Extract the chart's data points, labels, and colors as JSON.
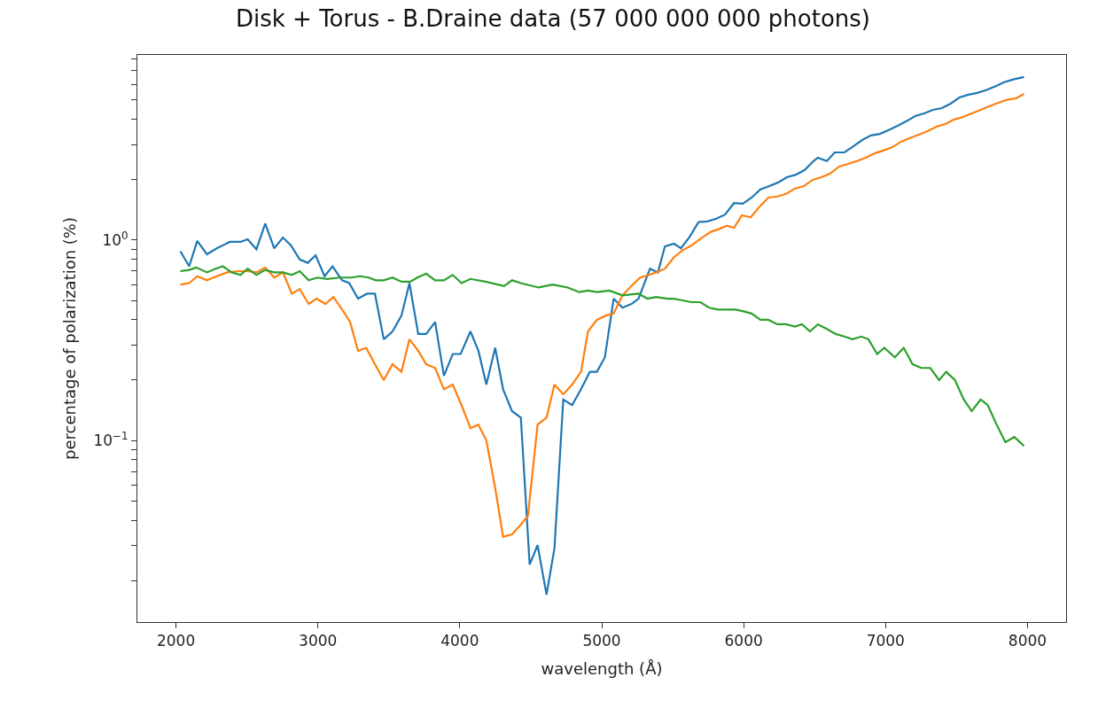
{
  "chart_data": {
    "type": "line",
    "title": "Disk + Torus - B.Draine data (57 000 000 000 photons)",
    "xlabel": "wavelength (Å)",
    "ylabel": "percentage of polarization (%)",
    "log": "y",
    "xlim": [
      1728,
      8272
    ],
    "ylim": [
      0.0124,
      8.4
    ],
    "xticks": [
      2000,
      3000,
      4000,
      5000,
      6000,
      7000,
      8000
    ],
    "yticks": [
      {
        "value": 0.02,
        "label": null
      },
      {
        "value": 0.03,
        "label": null
      },
      {
        "value": 0.04,
        "label": null
      },
      {
        "value": 0.05,
        "label": null
      },
      {
        "value": 0.06,
        "label": null
      },
      {
        "value": 0.07,
        "label": null
      },
      {
        "value": 0.08,
        "label": null
      },
      {
        "value": 0.09,
        "label": null
      },
      {
        "value": 0.1,
        "label": "10$^{−1}$"
      },
      {
        "value": 0.2,
        "label": null
      },
      {
        "value": 0.3,
        "label": null
      },
      {
        "value": 0.4,
        "label": null
      },
      {
        "value": 0.5,
        "label": null
      },
      {
        "value": 0.6,
        "label": null
      },
      {
        "value": 0.7,
        "label": null
      },
      {
        "value": 0.8,
        "label": null
      },
      {
        "value": 0.9,
        "label": null
      },
      {
        "value": 1,
        "label": "10$^{0}$"
      },
      {
        "value": 2,
        "label": null
      },
      {
        "value": 3,
        "label": null
      },
      {
        "value": 4,
        "label": null
      },
      {
        "value": 5,
        "label": null
      },
      {
        "value": 6,
        "label": null
      },
      {
        "value": 7,
        "label": null
      },
      {
        "value": 8,
        "label": null
      }
    ],
    "series": [
      {
        "color": "#1f77b4",
        "x": [
          2031,
          2093,
          2150,
          2218,
          2287,
          2380,
          2455,
          2505,
          2567,
          2629,
          2692,
          2754,
          2810,
          2872,
          2928,
          2984,
          3047,
          3103,
          3171,
          3221,
          3283,
          3346,
          3402,
          3464,
          3526,
          3589,
          3645,
          3707,
          3763,
          3826,
          3888,
          3950,
          4006,
          4075,
          4131,
          4187,
          4249,
          4305,
          4368,
          4430,
          4492,
          4548,
          4611,
          4667,
          4729,
          4791,
          4854,
          4916,
          4966,
          5022,
          5084,
          5146,
          5209,
          5259,
          5340,
          5396,
          5445,
          5508,
          5558,
          5620,
          5682,
          5745,
          5807,
          5869,
          5931,
          5994,
          6056,
          6118,
          6181,
          6243,
          6305,
          6368,
          6430,
          6492,
          6523,
          6586,
          6642,
          6710,
          6773,
          6835,
          6897,
          6960,
          7022,
          7084,
          7146,
          7209,
          7271,
          7333,
          7396,
          7458,
          7520,
          7583,
          7645,
          7707,
          7769,
          7832,
          7894,
          7975
        ],
        "values": [
          0.88,
          0.74,
          0.99,
          0.85,
          0.91,
          0.98,
          0.98,
          1.01,
          0.9,
          1.21,
          0.91,
          1.03,
          0.94,
          0.8,
          0.77,
          0.84,
          0.66,
          0.74,
          0.63,
          0.61,
          0.51,
          0.54,
          0.54,
          0.32,
          0.35,
          0.42,
          0.61,
          0.34,
          0.34,
          0.39,
          0.21,
          0.27,
          0.27,
          0.35,
          0.28,
          0.19,
          0.29,
          0.18,
          0.14,
          0.13,
          0.024,
          0.03,
          0.017,
          0.029,
          0.16,
          0.15,
          0.18,
          0.22,
          0.22,
          0.26,
          0.51,
          0.46,
          0.48,
          0.51,
          0.72,
          0.69,
          0.93,
          0.96,
          0.91,
          1.04,
          1.23,
          1.24,
          1.28,
          1.34,
          1.53,
          1.52,
          1.63,
          1.79,
          1.86,
          1.94,
          2.06,
          2.12,
          2.24,
          2.48,
          2.58,
          2.48,
          2.74,
          2.74,
          2.94,
          3.16,
          3.33,
          3.39,
          3.54,
          3.72,
          3.92,
          4.16,
          4.29,
          4.47,
          4.56,
          4.8,
          5.15,
          5.32,
          5.43,
          5.6,
          5.83,
          6.13,
          6.32,
          6.52
        ]
      },
      {
        "color": "#ff7f0e",
        "x": [
          2031,
          2093,
          2150,
          2218,
          2287,
          2361,
          2442,
          2505,
          2567,
          2629,
          2692,
          2754,
          2816,
          2872,
          2935,
          2991,
          3053,
          3109,
          3171,
          3227,
          3283,
          3340,
          3402,
          3464,
          3526,
          3589,
          3645,
          3707,
          3763,
          3826,
          3888,
          3950,
          4012,
          4075,
          4131,
          4187,
          4249,
          4305,
          4368,
          4430,
          4480,
          4548,
          4611,
          4667,
          4729,
          4791,
          4854,
          4903,
          4966,
          5028,
          5084,
          5146,
          5209,
          5271,
          5333,
          5383,
          5445,
          5508,
          5570,
          5632,
          5707,
          5769,
          5832,
          5882,
          5931,
          5988,
          6050,
          6112,
          6174,
          6237,
          6299,
          6361,
          6424,
          6486,
          6548,
          6610,
          6673,
          6735,
          6798,
          6860,
          6922,
          6984,
          7047,
          7109,
          7171,
          7234,
          7296,
          7358,
          7421,
          7483,
          7545,
          7607,
          7670,
          7732,
          7794,
          7857,
          7919,
          7975
        ],
        "values": [
          0.6,
          0.61,
          0.66,
          0.63,
          0.66,
          0.69,
          0.7,
          0.7,
          0.69,
          0.73,
          0.65,
          0.69,
          0.54,
          0.57,
          0.48,
          0.51,
          0.48,
          0.52,
          0.45,
          0.39,
          0.28,
          0.29,
          0.24,
          0.2,
          0.24,
          0.22,
          0.32,
          0.28,
          0.24,
          0.23,
          0.18,
          0.19,
          0.15,
          0.115,
          0.12,
          0.1,
          0.058,
          0.033,
          0.034,
          0.038,
          0.042,
          0.12,
          0.13,
          0.19,
          0.17,
          0.19,
          0.22,
          0.35,
          0.4,
          0.42,
          0.43,
          0.53,
          0.59,
          0.65,
          0.67,
          0.69,
          0.72,
          0.82,
          0.89,
          0.94,
          1.03,
          1.1,
          1.14,
          1.18,
          1.15,
          1.33,
          1.3,
          1.47,
          1.63,
          1.65,
          1.7,
          1.81,
          1.86,
          2.0,
          2.06,
          2.15,
          2.33,
          2.4,
          2.48,
          2.58,
          2.71,
          2.8,
          2.91,
          3.1,
          3.23,
          3.36,
          3.5,
          3.68,
          3.8,
          4.0,
          4.12,
          4.29,
          4.47,
          4.66,
          4.85,
          5.02,
          5.1,
          5.37
        ]
      },
      {
        "color": "#2ca02c",
        "x": [
          2031,
          2093,
          2143,
          2218,
          2280,
          2330,
          2393,
          2455,
          2505,
          2567,
          2629,
          2692,
          2754,
          2816,
          2872,
          2935,
          2997,
          3065,
          3153,
          3234,
          3296,
          3358,
          3408,
          3464,
          3526,
          3589,
          3651,
          3701,
          3763,
          3826,
          3888,
          3950,
          4012,
          4075,
          4181,
          4312,
          4368,
          4430,
          4555,
          4654,
          4760,
          4841,
          4903,
          4966,
          5053,
          5146,
          5259,
          5321,
          5383,
          5464,
          5508,
          5570,
          5632,
          5695,
          5757,
          5819,
          5882,
          5944,
          6006,
          6056,
          6118,
          6174,
          6237,
          6299,
          6361,
          6411,
          6467,
          6523,
          6586,
          6648,
          6710,
          6766,
          6829,
          6879,
          6941,
          6991,
          7065,
          7128,
          7190,
          7252,
          7315,
          7377,
          7427,
          7489,
          7551,
          7607,
          7670,
          7720,
          7782,
          7844,
          7907,
          7975
        ],
        "values": [
          0.7,
          0.71,
          0.73,
          0.69,
          0.72,
          0.74,
          0.69,
          0.67,
          0.72,
          0.67,
          0.71,
          0.69,
          0.69,
          0.67,
          0.7,
          0.63,
          0.65,
          0.64,
          0.65,
          0.65,
          0.66,
          0.65,
          0.63,
          0.63,
          0.65,
          0.62,
          0.62,
          0.65,
          0.68,
          0.63,
          0.63,
          0.67,
          0.61,
          0.64,
          0.62,
          0.59,
          0.63,
          0.61,
          0.58,
          0.6,
          0.58,
          0.55,
          0.56,
          0.55,
          0.56,
          0.53,
          0.54,
          0.51,
          0.52,
          0.51,
          0.51,
          0.5,
          0.49,
          0.49,
          0.46,
          0.45,
          0.45,
          0.45,
          0.44,
          0.43,
          0.4,
          0.4,
          0.38,
          0.38,
          0.37,
          0.38,
          0.35,
          0.38,
          0.36,
          0.34,
          0.33,
          0.32,
          0.33,
          0.32,
          0.27,
          0.29,
          0.26,
          0.29,
          0.24,
          0.23,
          0.23,
          0.2,
          0.22,
          0.2,
          0.16,
          0.14,
          0.16,
          0.15,
          0.12,
          0.098,
          0.104,
          0.094
        ]
      }
    ]
  }
}
